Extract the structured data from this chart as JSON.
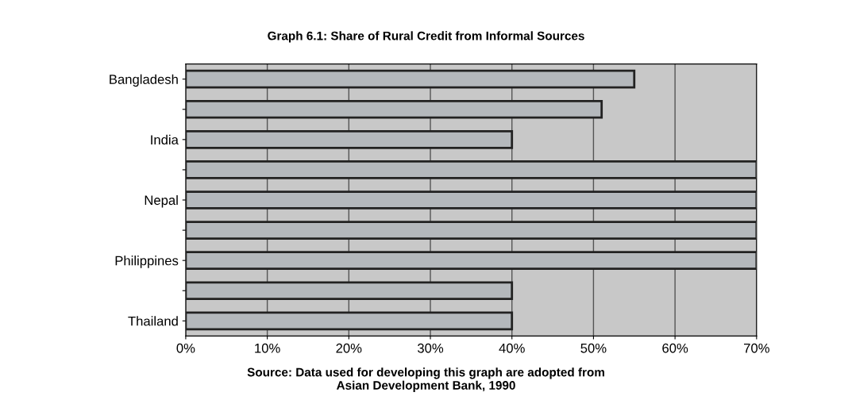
{
  "chart_data": {
    "type": "bar",
    "orientation": "horizontal",
    "title": "Graph 6.1: Share of Rural Credit from Informal Sources",
    "categories": [
      "Bangladesh",
      null,
      "India",
      null,
      "Nepal",
      null,
      "Philippines",
      null,
      "Thailand"
    ],
    "values": [
      55,
      51,
      40,
      70,
      70,
      70,
      70,
      40,
      40
    ],
    "color": "#b4b8bc",
    "xlim": [
      0,
      70
    ],
    "xticks": [
      {
        "value": 0,
        "label": "0%"
      },
      {
        "value": 10,
        "label": "10%"
      },
      {
        "value": 20,
        "label": "20%"
      },
      {
        "value": 30,
        "label": "30%"
      },
      {
        "value": 40,
        "label": "40%"
      },
      {
        "value": 50,
        "label": "50%"
      },
      {
        "value": 60,
        "label": "60%"
      },
      {
        "value": 70,
        "label": "70%"
      }
    ],
    "grid": "x",
    "annotations": [
      "Source: Data used for developing this graph are adopted from\nAsian Development Bank, 1990"
    ]
  }
}
